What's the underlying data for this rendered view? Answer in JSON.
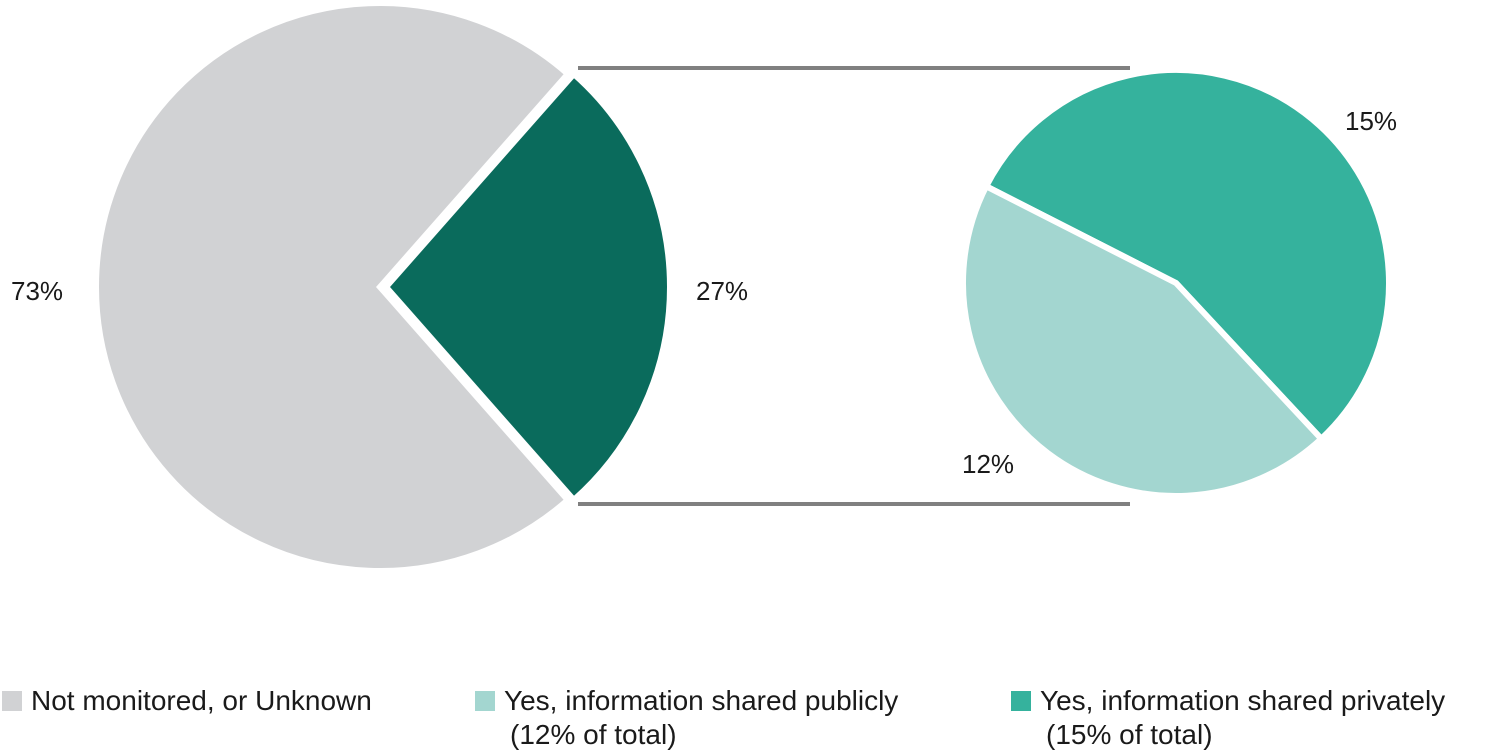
{
  "chart_data": [
    {
      "type": "pie",
      "slices": [
        {
          "label": "Not monitored, or Unknown",
          "value": 73,
          "value_label": "73%",
          "color": "#d1d2d4"
        },
        {
          "label": "Yes",
          "value": 27,
          "value_label": "27%",
          "color": "#0a6b5c"
        }
      ],
      "exploded": "Yes"
    },
    {
      "type": "pie",
      "slices": [
        {
          "label": "Yes, information shared privately",
          "value": 15,
          "value_label": "15%",
          "color": "#35b29d"
        },
        {
          "label": "Yes, information shared publicly",
          "value": 12,
          "value_label": "12%",
          "color": "#a3d6d0"
        }
      ],
      "breakdown_of": "27%"
    }
  ],
  "connector_color": "#808080",
  "legend": [
    {
      "label": "Not monitored, or Unknown",
      "sublabel": "",
      "color": "#d1d2d4"
    },
    {
      "label": "Yes, information shared publicly",
      "sublabel": "(12% of total)",
      "color": "#a3d6d0"
    },
    {
      "label": "Yes, information shared privately",
      "sublabel": "(15% of total)",
      "color": "#35b29d"
    }
  ]
}
